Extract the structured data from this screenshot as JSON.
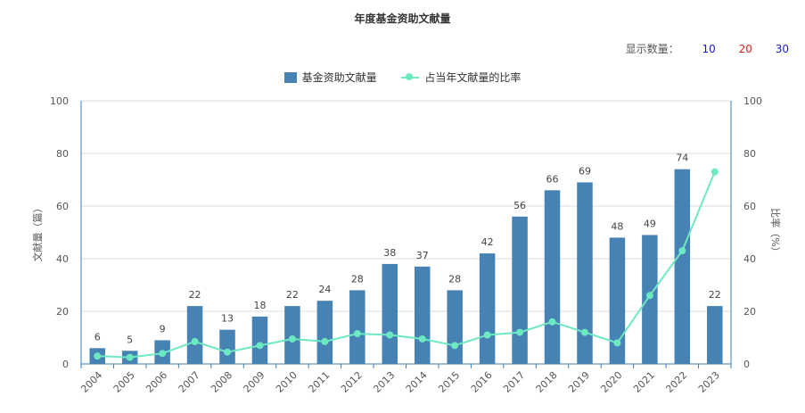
{
  "page": {
    "title": "年度基金资助文献量"
  },
  "controls": {
    "display_count_label": "显示数量：",
    "options": [
      {
        "label": "10",
        "color": "#1a1acc"
      },
      {
        "label": "20",
        "color": "#e02020"
      },
      {
        "label": "30",
        "color": "#1a1acc"
      }
    ]
  },
  "chart_data": {
    "type": "bar",
    "title": "年度基金资助文献量",
    "categories": [
      "2004",
      "2005",
      "2006",
      "2007",
      "2008",
      "2009",
      "2010",
      "2011",
      "2012",
      "2013",
      "2014",
      "2015",
      "2016",
      "2017",
      "2018",
      "2019",
      "2020",
      "2021",
      "2022",
      "2023"
    ],
    "series": [
      {
        "name": "基金资助文献量",
        "type": "bar",
        "axis": "left",
        "color": "#4682b4",
        "values": [
          6,
          5,
          9,
          22,
          13,
          18,
          22,
          24,
          28,
          38,
          37,
          28,
          42,
          56,
          66,
          69,
          48,
          49,
          74,
          22
        ]
      },
      {
        "name": "占当年文献量的比率",
        "type": "line",
        "axis": "right",
        "color": "#6de9c1",
        "values": [
          3,
          2.5,
          4,
          8.5,
          4.5,
          7,
          9.5,
          8.5,
          11.5,
          11,
          9.5,
          7,
          11,
          12,
          16,
          12,
          8,
          26,
          43,
          73
        ]
      }
    ],
    "ylabel": "文献量（篇）",
    "ylabel_right": "比率（%）",
    "ylim": [
      0,
      100
    ],
    "ylim_right": [
      0,
      100
    ],
    "yticks": [
      0,
      20,
      40,
      60,
      80,
      100
    ],
    "grid": true,
    "legend": "top-center"
  }
}
